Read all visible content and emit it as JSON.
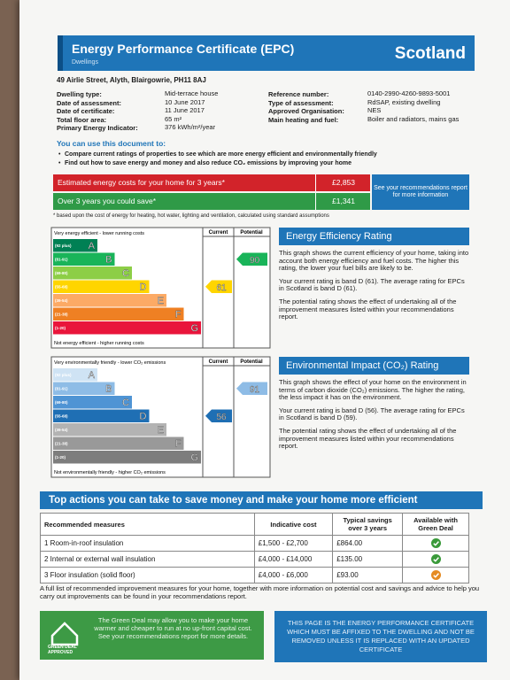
{
  "header": {
    "title": "Energy Performance Certificate (EPC)",
    "subtitle": "Dwellings",
    "country": "Scotland"
  },
  "address": "49 Airlie Street, Alyth, Blairgowrie, PH11 8AJ",
  "details": {
    "left": [
      [
        "Dwelling type:",
        "Mid-terrace house"
      ],
      [
        "Date of assessment:",
        "10 June 2017"
      ],
      [
        "Date of certificate:",
        "11 June 2017"
      ],
      [
        "Total floor area:",
        "65 m²"
      ],
      [
        "Primary Energy Indicator:",
        "376 kWh/m²/year"
      ]
    ],
    "right": [
      [
        "Reference number:",
        "0140-2990-4260-9893-5001"
      ],
      [
        "Type of assessment:",
        "RdSAP, existing dwelling"
      ],
      [
        "Approved Organisation:",
        "NES"
      ],
      [
        "Main heating and fuel:",
        "Boiler and radiators, mains gas"
      ]
    ]
  },
  "usage": {
    "heading": "You can use this document to:",
    "bullets": [
      "Compare current ratings of properties to see which are more energy efficient and environmentally friendly",
      "Find out how to save energy and money and also reduce CO₂ emissions by improving your home"
    ]
  },
  "costs": {
    "rows": [
      {
        "label": "Estimated energy costs for your home for 3 years*",
        "value": "£2,853",
        "color": "#d2232a"
      },
      {
        "label": "Over 3 years you could save*",
        "value": "£1,341",
        "color": "#2f9a47"
      }
    ],
    "note": "See your recommendations report for more information",
    "footnote": "* based upon the cost of energy for heating, hot water, lighting and ventilation, calculated using standard assumptions"
  },
  "efficiency_chart": {
    "top_label": "Very energy efficient - lower running costs",
    "bottom_label": "Not energy efficient - higher running costs",
    "columns": [
      "Current",
      "Potential"
    ],
    "bands": [
      {
        "range": "(92 plus)",
        "letter": "A",
        "color": "#008054"
      },
      {
        "range": "(81-91)",
        "letter": "B",
        "color": "#19b459"
      },
      {
        "range": "(69-80)",
        "letter": "C",
        "color": "#8dce46"
      },
      {
        "range": "(55-68)",
        "letter": "D",
        "color": "#ffd500"
      },
      {
        "range": "(39-54)",
        "letter": "E",
        "color": "#fcaa65"
      },
      {
        "range": "(21-38)",
        "letter": "F",
        "color": "#ef8023"
      },
      {
        "range": "(1-20)",
        "letter": "G",
        "color": "#e9153b"
      }
    ],
    "current": 61,
    "potential": 90
  },
  "environmental_chart": {
    "top_label": "Very environmentally friendly - lower CO₂ emissions",
    "bottom_label": "Not environmentally friendly - higher CO₂ emissions",
    "columns": [
      "Current",
      "Potential"
    ],
    "bands": [
      {
        "range": "(92 plus)",
        "letter": "A",
        "color": "#cfe3f4"
      },
      {
        "range": "(81-91)",
        "letter": "B",
        "color": "#8ebce6"
      },
      {
        "range": "(69-80)",
        "letter": "C",
        "color": "#4f94d4"
      },
      {
        "range": "(55-68)",
        "letter": "D",
        "color": "#1f6fb4"
      },
      {
        "range": "(39-54)",
        "letter": "E",
        "color": "#b3b3b3"
      },
      {
        "range": "(21-38)",
        "letter": "F",
        "color": "#999999"
      },
      {
        "range": "(1-20)",
        "letter": "G",
        "color": "#7d7d7d"
      }
    ],
    "current": 56,
    "potential": 91
  },
  "efficiency_text": {
    "heading": "Energy Efficiency Rating",
    "paragraphs": [
      "This graph shows the current efficiency of your home, taking into account both energy efficiency and fuel costs. The higher this rating, the lower your fuel bills are likely to be.",
      "Your current rating is band D (61). The average rating for EPCs in Scotland is band D (61).",
      "The potential rating shows the effect of undertaking all of the improvement measures listed within your recommendations report."
    ]
  },
  "environmental_text": {
    "heading": "Environmental Impact (CO₂) Rating",
    "paragraphs": [
      "This graph shows the effect of your home on the environment in terms of carbon dioxide (CO₂) emissions. The higher the rating, the less impact it has on the environment.",
      "Your current rating is band D (56). The average rating for EPCs in Scotland is band D (59).",
      "The potential rating shows the effect of undertaking all of the improvement measures listed within your recommendations report."
    ]
  },
  "actions": {
    "title": "Top actions you can take to save money and make your home more efficient",
    "headers": [
      "Recommended measures",
      "Indicative cost",
      "Typical savings over 3 years",
      "Available with Green Deal"
    ],
    "rows": [
      {
        "measure": "1 Room-in-roof insulation",
        "cost": "£1,500 - £2,700",
        "savings": "£864.00",
        "icon_color": "#3a9a3a"
      },
      {
        "measure": "2 Internal or external wall insulation",
        "cost": "£4,000 - £14,000",
        "savings": "£135.00",
        "icon_color": "#3a9a3a"
      },
      {
        "measure": "3 Floor insulation (solid floor)",
        "cost": "£4,000 - £6,000",
        "savings": "£93.00",
        "icon_color": "#e58b22"
      }
    ],
    "note": "A full list of recommended improvement measures for your home, together with more information on potential cost and savings and advice to help you carry out improvements can be found in your recommendations report."
  },
  "green_deal": {
    "logo": "GREEN DEAL APPROVED",
    "text": "The Green Deal may allow you to make your home warmer and cheaper to run at no up-front capital cost. See your recommendations report for more details."
  },
  "notice": "THIS PAGE IS THE ENERGY PERFORMANCE CERTIFICATE WHICH MUST BE AFFIXED TO THE DWELLING AND NOT BE REMOVED UNLESS IT IS REPLACED WITH AN UPDATED CERTIFICATE"
}
